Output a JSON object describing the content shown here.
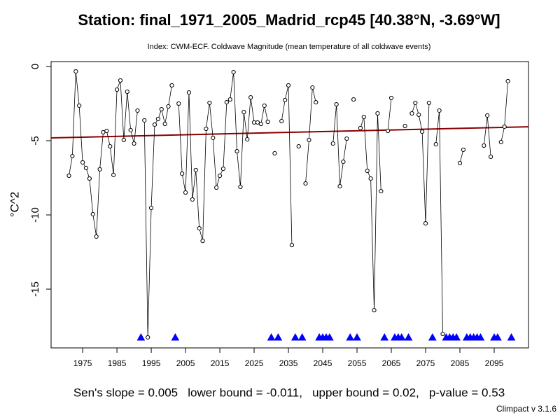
{
  "chart_data": {
    "type": "line",
    "title": "Station: final_1971_2005_Madrid_rcp45 [40.38°N, -3.69°W]",
    "subtitle": "Index: CWM-ECF. Coldwave Magnitude (mean temperature of all coldwave events)",
    "y_label": "°C^2",
    "footer": "Sen's slope = 0.005   lower bound = -0.011,   upper bound = 0.02,   p-value = 0.53",
    "credit": "Climpact v 3.1.6",
    "x": [
      1971,
      1972,
      1973,
      1974,
      1975,
      1976,
      1977,
      1978,
      1979,
      1980,
      1981,
      1982,
      1983,
      1984,
      1985,
      1986,
      1987,
      1988,
      1989,
      1990,
      1991,
      1992,
      1993,
      1994,
      1995,
      1996,
      1997,
      1998,
      1999,
      2000,
      2001,
      2002,
      2003,
      2004,
      2005,
      2006,
      2007,
      2008,
      2009,
      2010,
      2011,
      2012,
      2013,
      2014,
      2015,
      2016,
      2017,
      2018,
      2019,
      2020,
      2021,
      2022,
      2023,
      2024,
      2025,
      2026,
      2027,
      2028,
      2029,
      2030,
      2031,
      2032,
      2033,
      2034,
      2035,
      2036,
      2037,
      2038,
      2039,
      2040,
      2041,
      2042,
      2043,
      2044,
      2045,
      2046,
      2047,
      2048,
      2049,
      2050,
      2051,
      2052,
      2053,
      2054,
      2055,
      2056,
      2057,
      2058,
      2059,
      2060,
      2061,
      2062,
      2063,
      2064,
      2065,
      2066,
      2067,
      2068,
      2069,
      2070,
      2071,
      2072,
      2073,
      2074,
      2075,
      2076,
      2077,
      2078,
      2079,
      2080,
      2081,
      2082,
      2083,
      2084,
      2085,
      2086,
      2087,
      2088,
      2089,
      2090,
      2091,
      2092,
      2093,
      2094,
      2095,
      2096,
      2097,
      2098,
      2099,
      2100
    ],
    "series": [
      {
        "color": "#000000",
        "values": [
          -7.36,
          -6.04,
          -0.33,
          -2.64,
          -6.46,
          -6.84,
          -7.55,
          -9.95,
          -11.46,
          -6.93,
          -4.43,
          -4.34,
          -5.38,
          -7.31,
          -1.56,
          -0.94,
          -4.95,
          -1.7,
          -4.29,
          -5.19,
          -2.97,
          null,
          -3.63,
          -18.25,
          -9.53,
          -3.92,
          -3.54,
          -2.88,
          -3.87,
          -2.69,
          -1.27,
          null,
          -2.5,
          -7.22,
          -8.49,
          -1.75,
          -8.96,
          -6.98,
          -10.9,
          -11.75,
          -4.2,
          -2.45,
          -4.81,
          -8.16,
          -7.36,
          -6.89,
          -2.41,
          -2.22,
          -0.38,
          -5.71,
          -8.11,
          -3.07,
          -4.91,
          -2.08,
          -3.77,
          -3.77,
          -3.87,
          -2.64,
          -3.73,
          null,
          -5.85,
          null,
          -3.68,
          -2.26,
          -1.27,
          -12.03,
          null,
          -5.38,
          null,
          -7.88,
          -4.95,
          -1.42,
          -2.41,
          null,
          null,
          null,
          null,
          -5.19,
          -2.55,
          -8.07,
          -6.42,
          -4.86,
          null,
          -2.22,
          null,
          -4.15,
          -3.4,
          -7.03,
          -7.55,
          -16.42,
          -3.16,
          -8.4,
          null,
          -4.34,
          -2.12,
          null,
          null,
          null,
          -4.01,
          null,
          -3.16,
          -2.45,
          -3.25,
          -4.39,
          -10.57,
          -2.45,
          null,
          -5.24,
          -2.97,
          -18.02,
          null,
          null,
          null,
          null,
          -6.51,
          -5.61,
          null,
          null,
          null,
          null,
          null,
          -5.33,
          -3.3,
          -6.08,
          null,
          null,
          -5.09,
          -4.06,
          -0.99,
          null
        ]
      }
    ],
    "missing_color": "#0000ff",
    "trend": {
      "x": [
        1965.8,
        2105
      ],
      "values": [
        -4.81,
        -4.06
      ],
      "color": "#8b0000"
    },
    "xlim": [
      1965.8,
      2105
    ],
    "xticks": [
      1975,
      1985,
      1995,
      2005,
      2015,
      2025,
      2035,
      2045,
      2055,
      2065,
      2075,
      2085,
      2095
    ],
    "ylim": [
      -18.96,
      0.33
    ],
    "yticks": [
      0,
      -5,
      -10,
      -15
    ]
  }
}
